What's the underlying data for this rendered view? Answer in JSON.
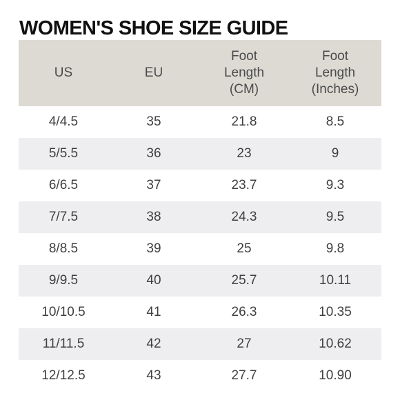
{
  "title": "WOMEN'S SHOE SIZE GUIDE",
  "headers": [
    "US",
    "EU",
    "Foot\nLength\n(CM)",
    "Foot\nLength\n(Inches)"
  ],
  "rows": [
    [
      "4/4.5",
      "35",
      "21.8",
      "8.5"
    ],
    [
      "5/5.5",
      "36",
      "23",
      "9"
    ],
    [
      "6/6.5",
      "37",
      "23.7",
      "9.3"
    ],
    [
      "7/7.5",
      "38",
      "24.3",
      "9.5"
    ],
    [
      "8/8.5",
      "39",
      "25",
      "9.8"
    ],
    [
      "9/9.5",
      "40",
      "25.7",
      "10.11"
    ],
    [
      "10/10.5",
      "41",
      "26.3",
      "10.35"
    ],
    [
      "11/11.5",
      "42",
      "27",
      "10.62"
    ],
    [
      "12/12.5",
      "43",
      "27.7",
      "10.90"
    ]
  ],
  "colors": {
    "header_background": "#dcdad3",
    "stripe_background": "#eeeef0",
    "title_text": "#111111",
    "body_text": "#3f3f3f"
  }
}
